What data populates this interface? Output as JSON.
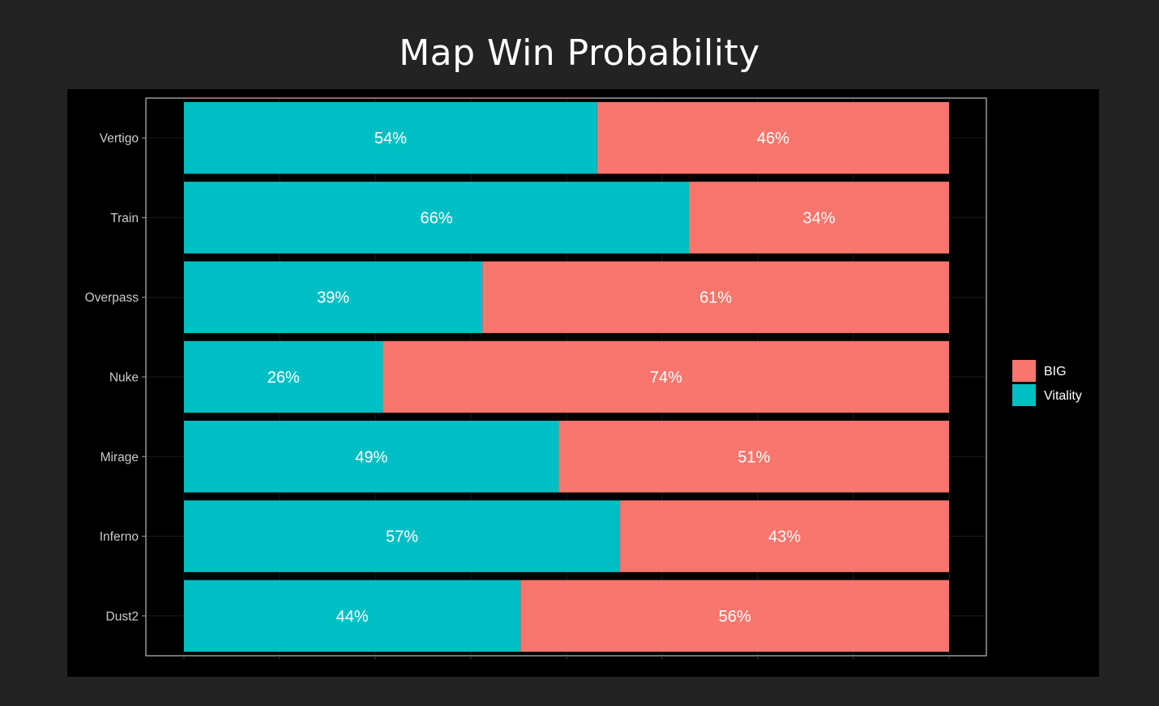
{
  "title": "Map Win Probability",
  "colors": {
    "page_bg": "#232323",
    "panel_bg": "#000000",
    "BIG": "#F8766D",
    "Vitality": "#00BFC4",
    "axis_text": "#cccccc",
    "frame": "#bdbdbd",
    "grid": "#1c1c1c",
    "bar_label": "#ffffff"
  },
  "chart_data": {
    "type": "bar",
    "orientation": "horizontal",
    "stacked": true,
    "categories": [
      "Vertigo",
      "Train",
      "Overpass",
      "Nuke",
      "Mirage",
      "Inferno",
      "Dust2"
    ],
    "series": [
      {
        "name": "Vitality",
        "values": [
          54,
          66,
          39,
          26,
          49,
          57,
          44
        ],
        "labels": [
          "54%",
          "66%",
          "39%",
          "26%",
          "49%",
          "57%",
          "44%"
        ]
      },
      {
        "name": "BIG",
        "values": [
          46,
          34,
          61,
          74,
          51,
          43,
          56
        ],
        "labels": [
          "46%",
          "34%",
          "61%",
          "74%",
          "51%",
          "43%",
          "56%"
        ]
      }
    ],
    "xlim": [
      0,
      100
    ],
    "grid": true,
    "legend": {
      "position": "right",
      "entries": [
        "BIG",
        "Vitality"
      ]
    }
  }
}
